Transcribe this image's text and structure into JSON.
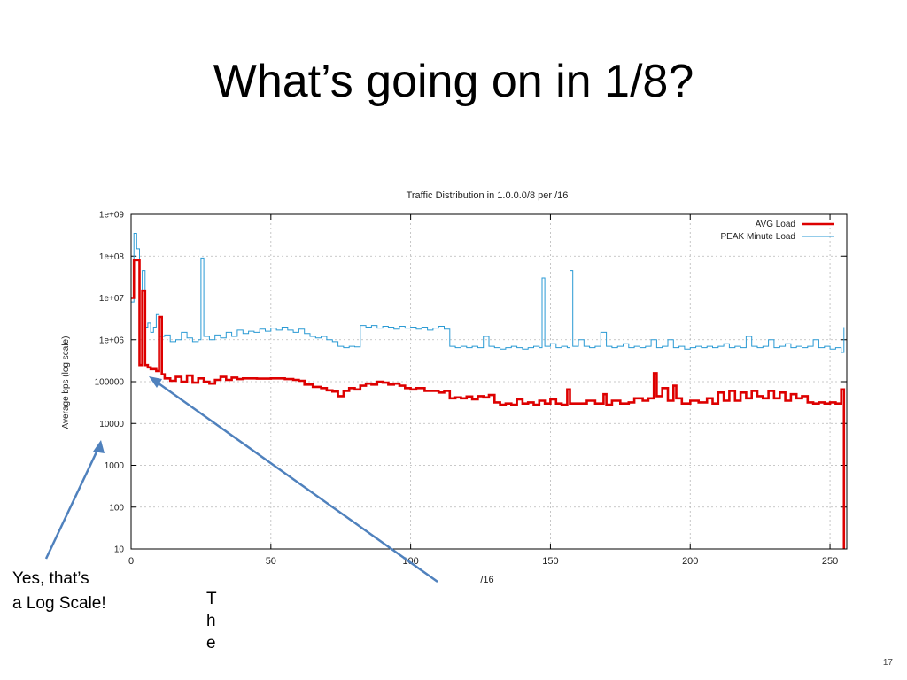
{
  "slide": {
    "title": "What’s going on in 1/8?",
    "callout_left_line1": "Yes, that’s",
    "callout_left_line2": "a Log Scale!",
    "callout_vertical": [
      "T",
      "h",
      "e"
    ],
    "number": "17"
  },
  "colors": {
    "avg": "#dd0000",
    "peak": "#2a9ad4",
    "arrow": "#4f81bd",
    "grid": "#b8b8b8"
  },
  "chart_data": {
    "type": "line",
    "title": "Traffic Distribution in 1.0.0.0/8 per /16",
    "xlabel": "/16",
    "ylabel": "Average bps (log scale)",
    "xlim": [
      0,
      256
    ],
    "ylim": [
      10,
      1000000000
    ],
    "yscale": "log",
    "grid": true,
    "legend_position": "top-right",
    "x_ticks": [
      0,
      50,
      100,
      150,
      200,
      250
    ],
    "y_ticks": [
      {
        "value": 10,
        "label": "10"
      },
      {
        "value": 100,
        "label": "100"
      },
      {
        "value": 1000,
        "label": "1000"
      },
      {
        "value": 10000,
        "label": "10000"
      },
      {
        "value": 100000,
        "label": "100000"
      },
      {
        "value": 1000000,
        "label": "1e+06"
      },
      {
        "value": 10000000,
        "label": "1e+07"
      },
      {
        "value": 100000000,
        "label": "1e+08"
      },
      {
        "value": 1000000000,
        "label": "1e+09"
      }
    ],
    "series": [
      {
        "name": "AVG Load",
        "points": [
          [
            0,
            10000000
          ],
          [
            1,
            80000000
          ],
          [
            2,
            80000000
          ],
          [
            3,
            250000
          ],
          [
            4,
            15000000
          ],
          [
            5,
            250000
          ],
          [
            6,
            220000
          ],
          [
            7,
            200000
          ],
          [
            8,
            200000
          ],
          [
            9,
            180000
          ],
          [
            10,
            3500000
          ],
          [
            11,
            150000
          ],
          [
            12,
            120000
          ],
          [
            14,
            105000
          ],
          [
            16,
            130000
          ],
          [
            18,
            100000
          ],
          [
            20,
            140000
          ],
          [
            22,
            95000
          ],
          [
            24,
            120000
          ],
          [
            26,
            100000
          ],
          [
            28,
            90000
          ],
          [
            30,
            110000
          ],
          [
            32,
            130000
          ],
          [
            34,
            110000
          ],
          [
            36,
            125000
          ],
          [
            38,
            115000
          ],
          [
            40,
            120000
          ],
          [
            45,
            118000
          ],
          [
            50,
            120000
          ],
          [
            55,
            115000
          ],
          [
            58,
            110000
          ],
          [
            60,
            105000
          ],
          [
            62,
            85000
          ],
          [
            65,
            75000
          ],
          [
            68,
            70000
          ],
          [
            70,
            62000
          ],
          [
            72,
            58000
          ],
          [
            74,
            45000
          ],
          [
            76,
            60000
          ],
          [
            78,
            70000
          ],
          [
            80,
            65000
          ],
          [
            82,
            80000
          ],
          [
            84,
            90000
          ],
          [
            86,
            85000
          ],
          [
            88,
            100000
          ],
          [
            90,
            95000
          ],
          [
            92,
            85000
          ],
          [
            94,
            90000
          ],
          [
            96,
            80000
          ],
          [
            98,
            70000
          ],
          [
            100,
            65000
          ],
          [
            102,
            70000
          ],
          [
            105,
            60000
          ],
          [
            108,
            60000
          ],
          [
            110,
            55000
          ],
          [
            112,
            60000
          ],
          [
            114,
            40000
          ],
          [
            116,
            42000
          ],
          [
            118,
            40000
          ],
          [
            120,
            44000
          ],
          [
            122,
            38000
          ],
          [
            124,
            45000
          ],
          [
            126,
            42000
          ],
          [
            128,
            48000
          ],
          [
            130,
            32000
          ],
          [
            132,
            28000
          ],
          [
            134,
            30000
          ],
          [
            136,
            28000
          ],
          [
            138,
            38000
          ],
          [
            140,
            30000
          ],
          [
            142,
            32000
          ],
          [
            144,
            28000
          ],
          [
            146,
            35000
          ],
          [
            148,
            30000
          ],
          [
            150,
            38000
          ],
          [
            152,
            30000
          ],
          [
            154,
            28000
          ],
          [
            156,
            65000
          ],
          [
            157,
            30000
          ],
          [
            160,
            30000
          ],
          [
            163,
            35000
          ],
          [
            166,
            30000
          ],
          [
            169,
            50000
          ],
          [
            170,
            28000
          ],
          [
            172,
            35000
          ],
          [
            175,
            30000
          ],
          [
            178,
            32000
          ],
          [
            180,
            40000
          ],
          [
            183,
            35000
          ],
          [
            185,
            40000
          ],
          [
            187,
            160000
          ],
          [
            188,
            45000
          ],
          [
            190,
            70000
          ],
          [
            192,
            35000
          ],
          [
            194,
            80000
          ],
          [
            195,
            40000
          ],
          [
            197,
            30000
          ],
          [
            200,
            35000
          ],
          [
            203,
            32000
          ],
          [
            206,
            40000
          ],
          [
            208,
            30000
          ],
          [
            210,
            55000
          ],
          [
            212,
            35000
          ],
          [
            214,
            60000
          ],
          [
            216,
            35000
          ],
          [
            218,
            55000
          ],
          [
            220,
            40000
          ],
          [
            222,
            60000
          ],
          [
            224,
            45000
          ],
          [
            226,
            40000
          ],
          [
            228,
            60000
          ],
          [
            230,
            40000
          ],
          [
            232,
            55000
          ],
          [
            234,
            35000
          ],
          [
            236,
            50000
          ],
          [
            238,
            40000
          ],
          [
            240,
            45000
          ],
          [
            242,
            32000
          ],
          [
            244,
            30000
          ],
          [
            246,
            32000
          ],
          [
            248,
            30000
          ],
          [
            250,
            32000
          ],
          [
            252,
            30000
          ],
          [
            254,
            65000
          ],
          [
            255,
            10
          ]
        ]
      },
      {
        "name": "PEAK Minute Load",
        "points": [
          [
            0,
            8000000
          ],
          [
            1,
            350000000
          ],
          [
            2,
            150000000
          ],
          [
            3,
            10000000
          ],
          [
            4,
            45000000
          ],
          [
            5,
            2000000
          ],
          [
            6,
            2500000
          ],
          [
            7,
            1500000
          ],
          [
            8,
            2000000
          ],
          [
            9,
            4000000
          ],
          [
            10,
            1200000
          ],
          [
            12,
            1300000
          ],
          [
            14,
            900000
          ],
          [
            16,
            1000000
          ],
          [
            18,
            1500000
          ],
          [
            20,
            1100000
          ],
          [
            22,
            900000
          ],
          [
            24,
            1000000
          ],
          [
            25,
            90000000
          ],
          [
            26,
            1200000
          ],
          [
            28,
            1000000
          ],
          [
            30,
            1300000
          ],
          [
            32,
            1100000
          ],
          [
            34,
            1500000
          ],
          [
            36,
            1200000
          ],
          [
            38,
            1700000
          ],
          [
            40,
            1400000
          ],
          [
            42,
            1600000
          ],
          [
            44,
            1500000
          ],
          [
            46,
            1800000
          ],
          [
            48,
            1600000
          ],
          [
            50,
            1900000
          ],
          [
            52,
            1700000
          ],
          [
            54,
            2000000
          ],
          [
            56,
            1700000
          ],
          [
            58,
            1500000
          ],
          [
            60,
            1800000
          ],
          [
            62,
            1400000
          ],
          [
            64,
            1200000
          ],
          [
            66,
            1100000
          ],
          [
            68,
            1200000
          ],
          [
            70,
            1000000
          ],
          [
            72,
            900000
          ],
          [
            74,
            700000
          ],
          [
            76,
            650000
          ],
          [
            78,
            700000
          ],
          [
            80,
            680000
          ],
          [
            82,
            2200000
          ],
          [
            84,
            2000000
          ],
          [
            86,
            2200000
          ],
          [
            88,
            1900000
          ],
          [
            90,
            2100000
          ],
          [
            92,
            2000000
          ],
          [
            94,
            1800000
          ],
          [
            96,
            2100000
          ],
          [
            98,
            1900000
          ],
          [
            100,
            2000000
          ],
          [
            102,
            1800000
          ],
          [
            104,
            2000000
          ],
          [
            106,
            1700000
          ],
          [
            108,
            1900000
          ],
          [
            110,
            2100000
          ],
          [
            112,
            1800000
          ],
          [
            114,
            700000
          ],
          [
            116,
            650000
          ],
          [
            118,
            700000
          ],
          [
            120,
            650000
          ],
          [
            122,
            700000
          ],
          [
            124,
            650000
          ],
          [
            126,
            1200000
          ],
          [
            128,
            700000
          ],
          [
            130,
            650000
          ],
          [
            132,
            600000
          ],
          [
            134,
            650000
          ],
          [
            136,
            700000
          ],
          [
            138,
            650000
          ],
          [
            140,
            600000
          ],
          [
            142,
            650000
          ],
          [
            144,
            700000
          ],
          [
            146,
            650000
          ],
          [
            147,
            30000000
          ],
          [
            148,
            700000
          ],
          [
            150,
            800000
          ],
          [
            152,
            650000
          ],
          [
            154,
            700000
          ],
          [
            156,
            650000
          ],
          [
            157,
            45000000
          ],
          [
            158,
            700000
          ],
          [
            160,
            1000000
          ],
          [
            162,
            700000
          ],
          [
            164,
            650000
          ],
          [
            166,
            700000
          ],
          [
            168,
            1500000
          ],
          [
            170,
            700000
          ],
          [
            172,
            650000
          ],
          [
            174,
            700000
          ],
          [
            176,
            800000
          ],
          [
            178,
            650000
          ],
          [
            180,
            700000
          ],
          [
            182,
            650000
          ],
          [
            184,
            700000
          ],
          [
            186,
            1000000
          ],
          [
            188,
            650000
          ],
          [
            190,
            700000
          ],
          [
            192,
            1000000
          ],
          [
            194,
            650000
          ],
          [
            196,
            700000
          ],
          [
            198,
            600000
          ],
          [
            200,
            650000
          ],
          [
            202,
            700000
          ],
          [
            204,
            650000
          ],
          [
            206,
            700000
          ],
          [
            208,
            650000
          ],
          [
            210,
            700000
          ],
          [
            212,
            800000
          ],
          [
            214,
            650000
          ],
          [
            216,
            700000
          ],
          [
            218,
            650000
          ],
          [
            220,
            1200000
          ],
          [
            222,
            700000
          ],
          [
            224,
            650000
          ],
          [
            226,
            700000
          ],
          [
            228,
            1000000
          ],
          [
            230,
            650000
          ],
          [
            232,
            700000
          ],
          [
            234,
            800000
          ],
          [
            236,
            650000
          ],
          [
            238,
            700000
          ],
          [
            240,
            650000
          ],
          [
            242,
            700000
          ],
          [
            244,
            1000000
          ],
          [
            246,
            650000
          ],
          [
            248,
            700000
          ],
          [
            250,
            600000
          ],
          [
            252,
            650000
          ],
          [
            254,
            500000
          ],
          [
            255,
            2000000
          ]
        ]
      }
    ]
  }
}
